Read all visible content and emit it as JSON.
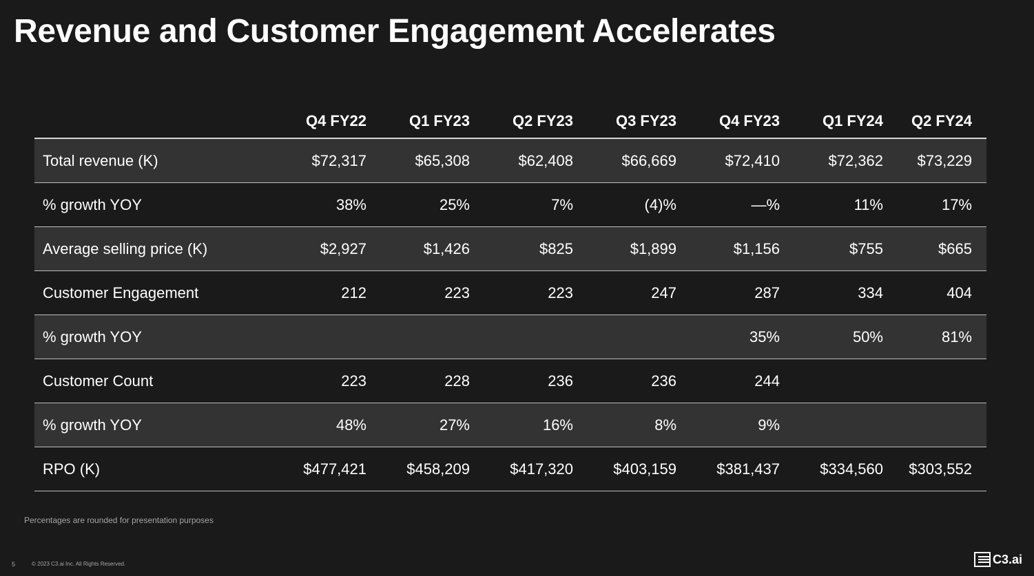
{
  "title": "Revenue and Customer Engagement Accelerates",
  "table": {
    "columns": [
      "Q4 FY22",
      "Q1 FY23",
      "Q2 FY23",
      "Q3 FY23",
      "Q4 FY23",
      "Q1 FY24",
      "Q2 FY24"
    ],
    "rows": [
      {
        "label": "Total revenue (K)",
        "values": [
          "$72,317",
          "$65,308",
          "$62,408",
          "$66,669",
          "$72,410",
          "$72,362",
          "$73,229"
        ]
      },
      {
        "label": "% growth YOY",
        "values": [
          "38%",
          "25%",
          "7%",
          "(4)%",
          "—%",
          "11%",
          "17%"
        ]
      },
      {
        "label": "Average selling price (K)",
        "values": [
          "$2,927",
          "$1,426",
          "$825",
          "$1,899",
          "$1,156",
          "$755",
          "$665"
        ]
      },
      {
        "label": "Customer Engagement",
        "values": [
          "212",
          "223",
          "223",
          "247",
          "287",
          "334",
          "404"
        ]
      },
      {
        "label": "% growth YOY",
        "values": [
          "",
          "",
          "",
          "",
          "35%",
          "50%",
          "81%"
        ]
      },
      {
        "label": "Customer Count",
        "values": [
          "223",
          "228",
          "236",
          "236",
          "244",
          "",
          ""
        ]
      },
      {
        "label": "% growth YOY",
        "values": [
          "48%",
          "27%",
          "16%",
          "8%",
          "9%",
          "",
          ""
        ]
      },
      {
        "label": "RPO (K)",
        "values": [
          "$477,421",
          "$458,209",
          "$417,320",
          "$403,159",
          "$381,437",
          "$334,560",
          "$303,552"
        ]
      }
    ]
  },
  "footnote": "Percentages are rounded for presentation purposes",
  "footer": {
    "page_number": "5",
    "copyright": "© 2023 C3.ai Inc. All Rights Reserved.",
    "logo_text": "C3.ai"
  },
  "colors": {
    "background": "#1a1a1a",
    "shaded_row": "#333333",
    "text": "#ffffff",
    "muted_text": "#a6a6a6"
  }
}
